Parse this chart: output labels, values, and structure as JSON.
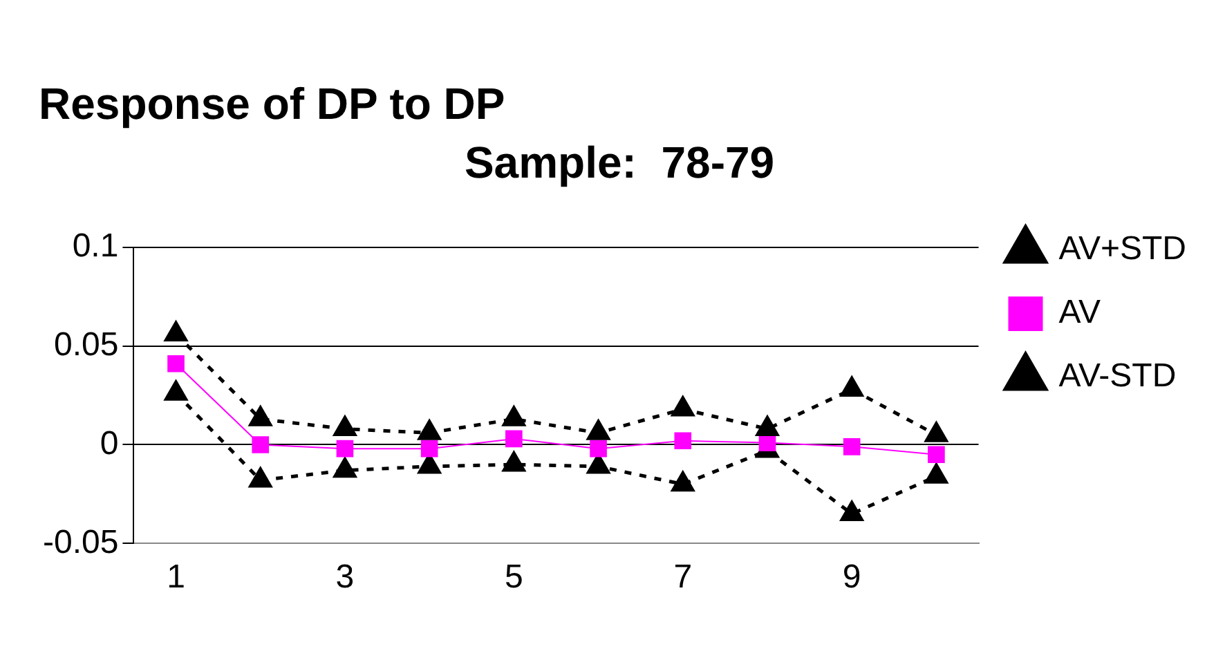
{
  "chart_data": {
    "type": "line",
    "title": "Response of DP to DP",
    "subtitle": "Sample:  78-79",
    "categories": [
      "1",
      null,
      "3",
      null,
      "5",
      null,
      "7",
      null,
      "9",
      null
    ],
    "series": [
      {
        "name": "AV+STD",
        "color": "#000000",
        "marker": "triangle",
        "line_style": "dashed",
        "values": [
          0.056,
          0.013,
          0.008,
          0.006,
          0.013,
          0.006,
          0.018,
          0.008,
          0.028,
          0.005
        ]
      },
      {
        "name": "AV",
        "color": "#ff00ff",
        "marker": "square",
        "line_style": "solid",
        "values": [
          0.041,
          0,
          -0.002,
          -0.002,
          0.003,
          -0.002,
          0.002,
          0.001,
          -0.001,
          -0.005
        ]
      },
      {
        "name": "AV-STD",
        "color": "#000000",
        "marker": "triangle",
        "line_style": "dashed",
        "values": [
          0.026,
          -0.018,
          -0.013,
          -0.011,
          -0.01,
          -0.011,
          -0.02,
          -0.003,
          -0.035,
          -0.016
        ]
      }
    ],
    "ylim": [
      -0.05,
      0.1
    ],
    "yticks": [
      -0.05,
      0,
      0.05,
      0.1
    ],
    "grid": "y",
    "legend": "right"
  }
}
